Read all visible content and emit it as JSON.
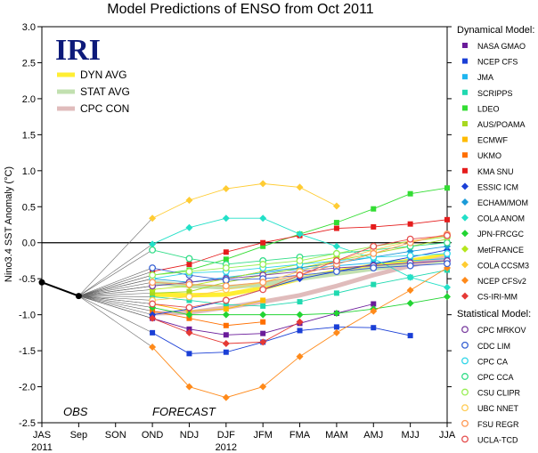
{
  "chart_data": {
    "type": "line",
    "title": "Model Predictions of ENSO from Oct 2011",
    "ylabel": "Nino3.4 SST Anomaly (°C)",
    "xlabel": "",
    "ylim": [
      -2.5,
      3.0
    ],
    "y_ticks": [
      "3.0",
      "2.5",
      "2.0",
      "1.5",
      "1.0",
      "0.5",
      "0.0",
      "-0.5",
      "-1.0",
      "-1.5",
      "-2.0",
      "-2.5"
    ],
    "categories": [
      "JAS",
      "Sep",
      "SON",
      "OND",
      "NDJ",
      "DJF",
      "JFM",
      "FMA",
      "MAM",
      "AMJ",
      "MJJ",
      "JJA"
    ],
    "year_labels": [
      {
        "label": "2011",
        "at": "JAS"
      },
      {
        "label": "2012",
        "at": "DJF"
      }
    ],
    "annotations": {
      "obs": "OBS",
      "forecast": "FORECAST",
      "logo": "IRI"
    },
    "observed": {
      "name": "OBS",
      "x": [
        "JAS",
        "Sep"
      ],
      "values": [
        -0.55,
        -0.74
      ]
    },
    "averages": [
      {
        "name": "DYN AVG",
        "color": "#ffee33",
        "values": [
          null,
          null,
          null,
          -0.72,
          -0.73,
          -0.72,
          -0.63,
          -0.5,
          -0.4,
          -0.32,
          -0.25,
          -0.17
        ]
      },
      {
        "name": "STAT AVG",
        "color": "#c2e0b0",
        "values": [
          null,
          null,
          null,
          -0.55,
          -0.6,
          -0.62,
          -0.58,
          -0.5,
          -0.43,
          -0.36,
          -0.3,
          -0.24
        ]
      },
      {
        "name": "CPC CON",
        "color": "#e0bcbc",
        "values": [
          null,
          null,
          null,
          -0.98,
          -0.97,
          -0.9,
          -0.82,
          -0.73,
          -0.6,
          -0.45,
          -0.32,
          -0.2
        ]
      }
    ],
    "groups": [
      {
        "title": "Dynamical Model:",
        "series": [
          {
            "name": "NASA GMAO",
            "color": "#6a1b9a",
            "marker": "square",
            "values": [
              null,
              null,
              null,
              -1.05,
              -1.2,
              -1.28,
              -1.26,
              -1.12,
              -0.98,
              -0.85,
              null,
              null
            ]
          },
          {
            "name": "NCEP CFS",
            "color": "#1a3fd6",
            "marker": "square",
            "values": [
              null,
              null,
              null,
              -1.25,
              -1.54,
              -1.52,
              -1.38,
              -1.22,
              -1.17,
              -1.18,
              -1.29,
              null
            ]
          },
          {
            "name": "JMA",
            "color": "#1fb6f0",
            "marker": "square",
            "values": [
              null,
              null,
              null,
              -0.6,
              -0.55,
              -0.48,
              -0.42,
              -0.37,
              -0.32,
              -0.28,
              -0.25,
              -0.22
            ]
          },
          {
            "name": "SCRIPPS",
            "color": "#20d9b0",
            "marker": "square",
            "values": [
              null,
              null,
              null,
              -0.75,
              -0.8,
              -0.86,
              -0.88,
              -0.82,
              -0.7,
              -0.58,
              -0.48,
              -0.38
            ]
          },
          {
            "name": "LDEO",
            "color": "#33dd33",
            "marker": "square",
            "values": [
              null,
              null,
              null,
              -0.45,
              -0.38,
              -0.23,
              -0.05,
              0.12,
              0.28,
              0.47,
              0.68,
              0.76
            ]
          },
          {
            "name": "AUS/POAMA",
            "color": "#a8d820",
            "marker": "square",
            "values": [
              null,
              null,
              null,
              -0.7,
              -0.68,
              -0.55,
              -0.45,
              -0.35,
              -0.25,
              -0.15,
              -0.05,
              0.05
            ]
          },
          {
            "name": "ECMWF",
            "color": "#ffbb00",
            "marker": "square",
            "values": [
              null,
              null,
              null,
              -0.85,
              -0.95,
              -0.92,
              -0.8,
              null,
              null,
              null,
              null,
              null
            ]
          },
          {
            "name": "UKMO",
            "color": "#ff6f00",
            "marker": "square",
            "values": [
              null,
              null,
              null,
              -0.95,
              -1.05,
              -1.15,
              -1.1,
              null,
              null,
              null,
              null,
              null
            ]
          },
          {
            "name": "KMA SNU",
            "color": "#e51c1c",
            "marker": "square",
            "values": [
              null,
              null,
              null,
              -0.4,
              -0.3,
              -0.13,
              0.0,
              0.1,
              0.2,
              0.22,
              0.26,
              0.32
            ]
          },
          {
            "name": "ESSIC ICM",
            "color": "#1b3fd6",
            "marker": "diamond",
            "values": [
              null,
              null,
              null,
              -1.0,
              -0.92,
              -0.8,
              -0.65,
              -0.5,
              -0.4,
              -0.3,
              -0.2,
              -0.1
            ]
          },
          {
            "name": "ECHAM/MOM",
            "color": "#1a9bd8",
            "marker": "diamond",
            "values": [
              null,
              null,
              null,
              -0.5,
              -0.55,
              -0.5,
              -0.4,
              -0.35,
              -0.28,
              -0.2,
              -0.12,
              -0.05
            ]
          },
          {
            "name": "COLA ANOM",
            "color": "#22e0c8",
            "marker": "diamond",
            "values": [
              null,
              null,
              null,
              -0.02,
              0.21,
              0.34,
              0.34,
              0.12,
              -0.05,
              -0.22,
              -0.48,
              -0.62
            ]
          },
          {
            "name": "JPN-FRCGC",
            "color": "#22d433",
            "marker": "diamond",
            "values": [
              null,
              null,
              null,
              -0.9,
              -1.0,
              -1.0,
              -1.0,
              -1.0,
              -0.98,
              -0.92,
              -0.84,
              -0.75
            ]
          },
          {
            "name": "MetFRANCE",
            "color": "#b5e61d",
            "marker": "diamond",
            "values": [
              null,
              null,
              null,
              -0.65,
              -0.6,
              -0.5,
              -0.4,
              -0.3,
              -0.2,
              null,
              null,
              null
            ]
          },
          {
            "name": "COLA CCSM3",
            "color": "#ffcc33",
            "marker": "diamond",
            "values": [
              null,
              null,
              null,
              0.34,
              0.59,
              0.75,
              0.82,
              0.77,
              0.51,
              null,
              null,
              null
            ]
          },
          {
            "name": "NCEP CFSv2",
            "color": "#ff8a1a",
            "marker": "diamond",
            "values": [
              null,
              null,
              null,
              -1.45,
              -2.0,
              -2.15,
              -2.0,
              -1.58,
              -1.25,
              -0.95,
              -0.66,
              -0.35
            ]
          },
          {
            "name": "CS-IRI-MM",
            "color": "#e53935",
            "marker": "diamond",
            "values": [
              null,
              null,
              null,
              -1.05,
              -1.25,
              -1.4,
              -1.38,
              -1.1,
              null,
              null,
              null,
              null
            ]
          }
        ]
      },
      {
        "title": "Statistical Model:",
        "series": [
          {
            "name": "CPC MRKOV",
            "color": "#7b3fa0",
            "marker": "circle",
            "values": [
              null,
              null,
              null,
              -0.6,
              -0.55,
              -0.5,
              -0.45,
              -0.4,
              -0.35,
              -0.32,
              -0.28,
              -0.25
            ]
          },
          {
            "name": "CDC LIM",
            "color": "#3a63d4",
            "marker": "circle",
            "values": [
              null,
              null,
              null,
              -0.35,
              -0.45,
              -0.52,
              -0.5,
              -0.45,
              -0.4,
              -0.35,
              -0.32,
              -0.29
            ]
          },
          {
            "name": "CPC CA",
            "color": "#33d6e8",
            "marker": "circle",
            "values": [
              null,
              null,
              null,
              -0.5,
              -0.42,
              -0.4,
              -0.35,
              -0.3,
              -0.25,
              -0.2,
              -0.18,
              -0.15
            ]
          },
          {
            "name": "CPC CCA",
            "color": "#33dd88",
            "marker": "circle",
            "values": [
              null,
              null,
              null,
              -0.1,
              -0.22,
              -0.3,
              -0.25,
              -0.2,
              -0.15,
              -0.1,
              -0.05,
              0.0
            ]
          },
          {
            "name": "CSU CLIPR",
            "color": "#99ee55",
            "marker": "circle",
            "values": [
              null,
              null,
              null,
              -0.45,
              -0.4,
              -0.35,
              -0.3,
              -0.25,
              -0.15,
              -0.05,
              0.02,
              0.08
            ]
          },
          {
            "name": "UBC NNET",
            "color": "#ffcc55",
            "marker": "circle",
            "values": [
              null,
              null,
              null,
              -0.8,
              -0.75,
              -0.65,
              -0.55,
              -0.4,
              -0.25,
              -0.1,
              0.02,
              0.1
            ]
          },
          {
            "name": "FSU REGR",
            "color": "#ff9955",
            "marker": "circle",
            "values": [
              null,
              null,
              null,
              -0.55,
              -0.58,
              -0.6,
              -0.55,
              -0.45,
              -0.3,
              -0.15,
              0.0,
              0.12
            ]
          },
          {
            "name": "UCLA-TCD",
            "color": "#e55050",
            "marker": "circle",
            "values": [
              null,
              null,
              null,
              -0.85,
              -0.9,
              -0.8,
              -0.65,
              -0.45,
              -0.25,
              -0.05,
              0.05,
              0.1
            ]
          }
        ]
      }
    ]
  }
}
